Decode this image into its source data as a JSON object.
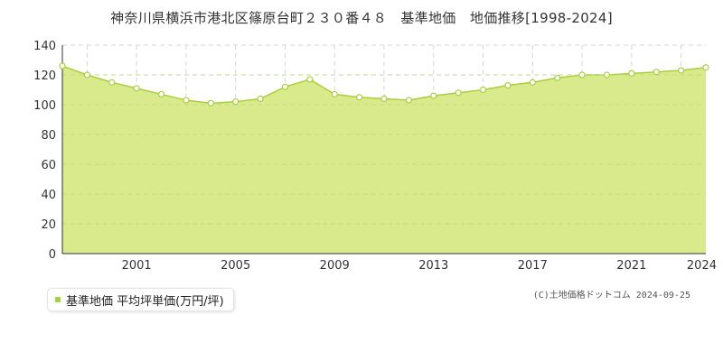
{
  "page": {
    "title": "神奈川県横浜市港北区篠原台町２３０番４８　基準地価　地価推移[1998-2024]"
  },
  "legend": {
    "label": "基準地価 平均坪単価(万円/坪)"
  },
  "credit": "(C)土地価格ドットコム 2024-09-25",
  "colors": {
    "fill": "#d9ea8c",
    "line": "#a8cf3c",
    "marker_fill": "#ffffff",
    "grid": "#d6d6d6",
    "axis": "#333333",
    "legend_swatch": "#a8cf3c"
  },
  "chart_data": {
    "type": "area",
    "x": [
      1998,
      1999,
      2000,
      2001,
      2002,
      2003,
      2004,
      2005,
      2006,
      2007,
      2008,
      2009,
      2010,
      2011,
      2012,
      2013,
      2014,
      2015,
      2016,
      2017,
      2018,
      2019,
      2020,
      2021,
      2022,
      2023,
      2024
    ],
    "series": [
      {
        "name": "基準地価 平均坪単価(万円/坪)",
        "values": [
          126,
          120,
          115,
          111,
          107,
          103,
          101,
          102,
          104,
          112,
          117,
          107,
          105,
          104,
          103,
          106,
          108,
          110,
          113,
          115,
          118,
          120,
          120,
          121,
          122,
          123,
          125
        ]
      }
    ],
    "xlim": [
      1998,
      2024
    ],
    "ylim": [
      0,
      140
    ],
    "yticks": [
      0,
      20,
      40,
      60,
      80,
      100,
      120,
      140
    ],
    "xticks": [
      2001,
      2005,
      2009,
      2013,
      2017,
      2021,
      2024
    ],
    "grid": true,
    "legend_position": "bottom-left"
  }
}
